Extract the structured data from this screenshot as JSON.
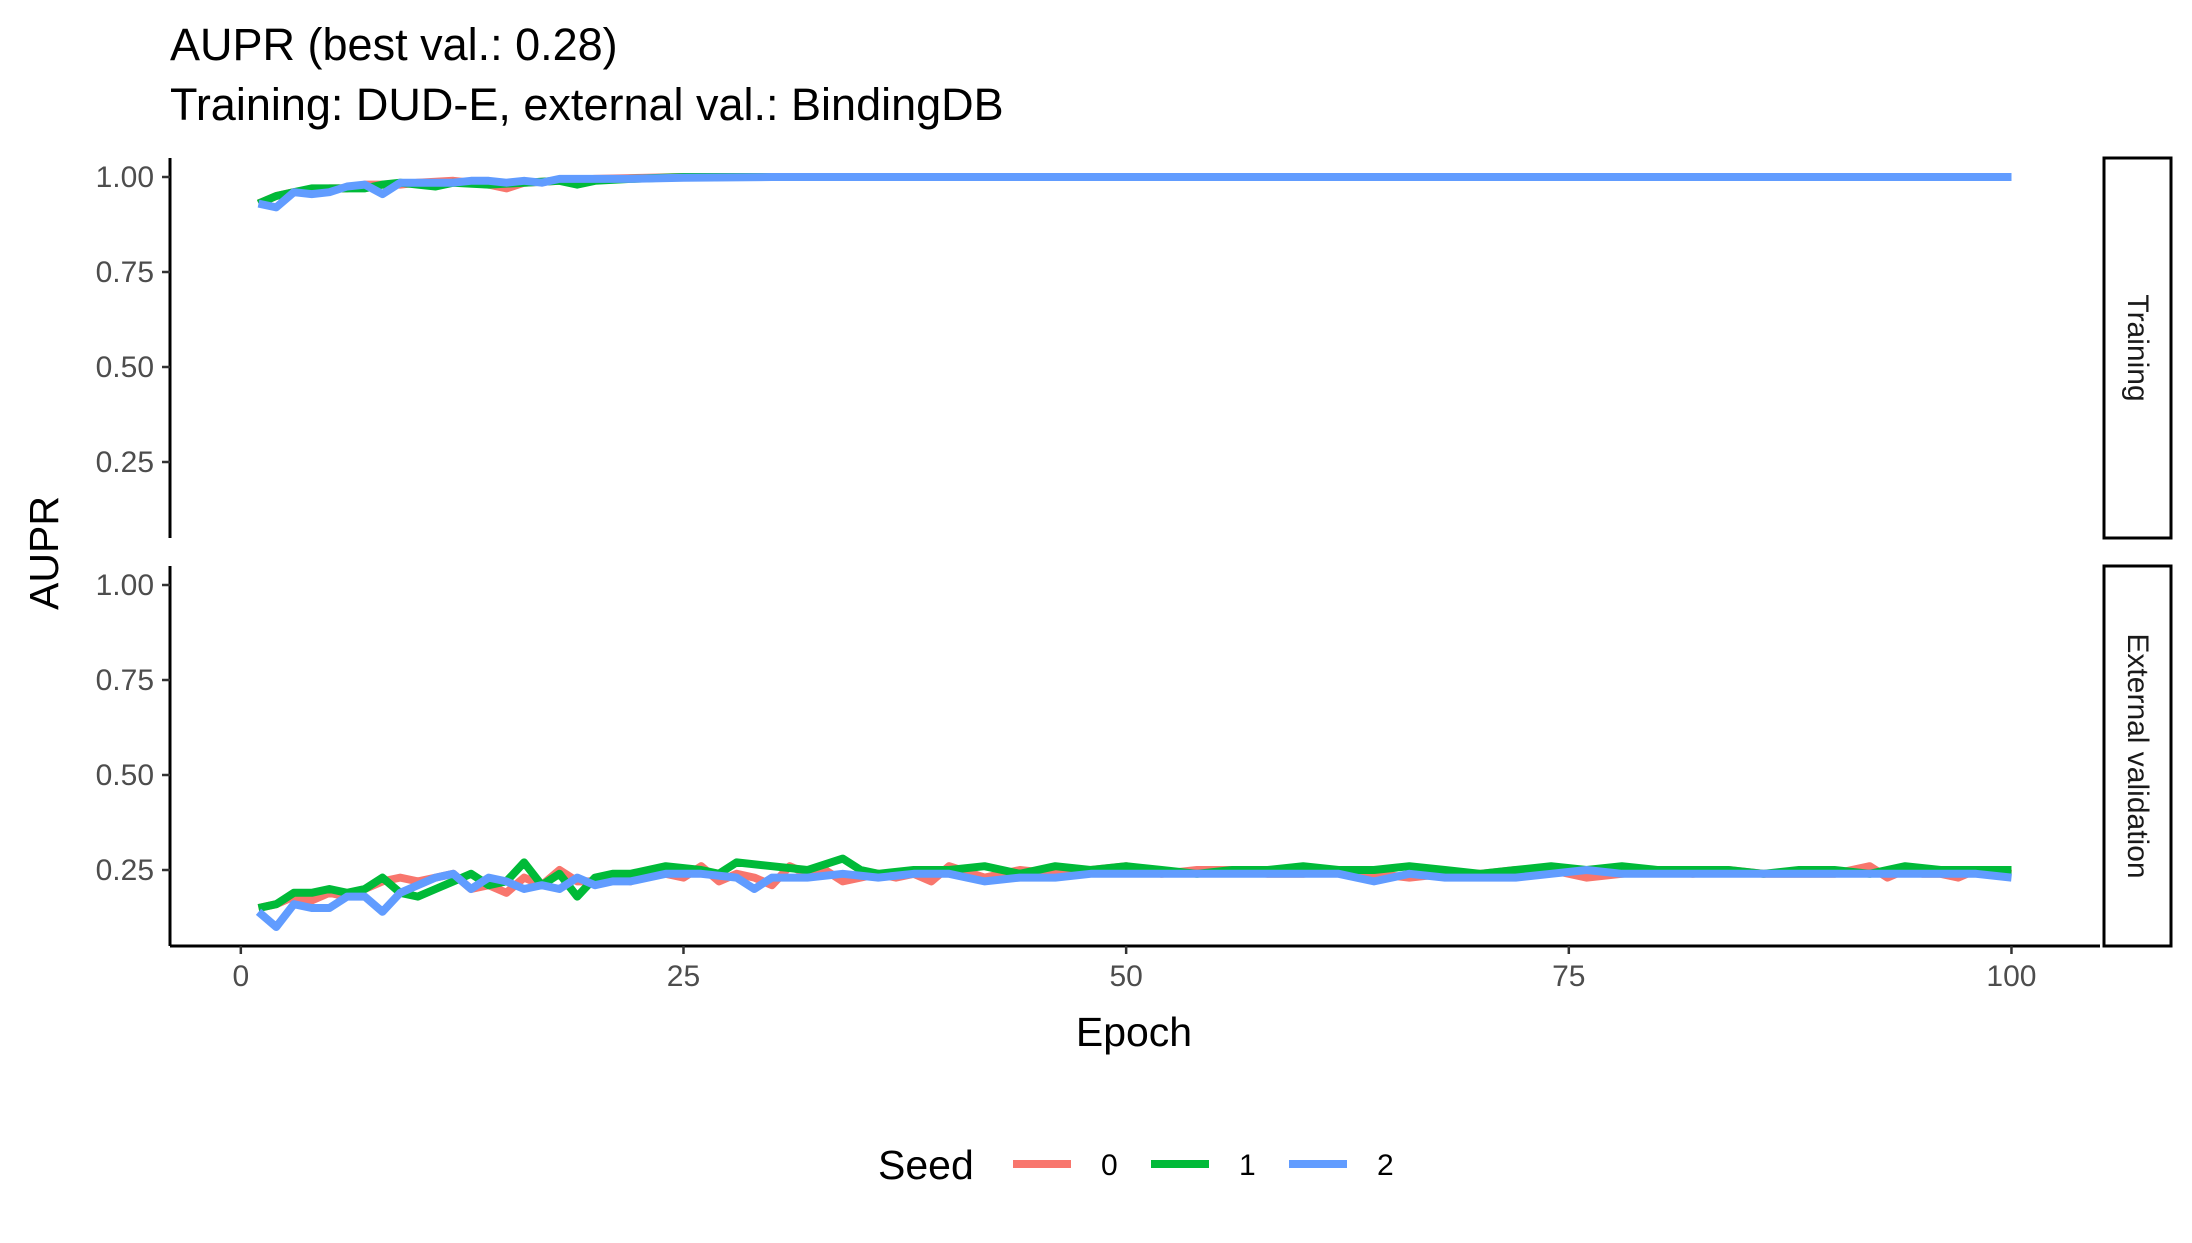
{
  "chart_data": {
    "type": "line",
    "title": "AUPR (best val.: 0.28)",
    "subtitle": "Training: DUD-E, external val.: BindingDB",
    "xlabel": "Epoch",
    "ylabel": "AUPR",
    "xlim": [
      -4,
      105
    ],
    "ylim": [
      0.05,
      1.05
    ],
    "x_ticks": [
      0,
      25,
      50,
      75,
      100
    ],
    "x_tick_labels": [
      "0",
      "25",
      "50",
      "75",
      "100"
    ],
    "y_ticks": [
      0.25,
      0.5,
      0.75,
      1.0
    ],
    "y_tick_labels": [
      "0.25",
      "0.50",
      "0.75",
      "1.00"
    ],
    "grid": false,
    "legend": {
      "title": "Seed",
      "position": "bottom"
    },
    "series_colors": {
      "0": "#F8766D",
      "1": "#00BA38",
      "2": "#619CFF"
    },
    "panels": [
      {
        "name": "Training",
        "series": [
          {
            "name": "0",
            "x": [
              1,
              2,
              3,
              4,
              5,
              6,
              7,
              8,
              9,
              10,
              12,
              14,
              15,
              16,
              18,
              20,
              25,
              30,
              40,
              50,
              60,
              70,
              80,
              90,
              100
            ],
            "y": [
              0.93,
              0.95,
              0.96,
              0.96,
              0.97,
              0.97,
              0.98,
              0.98,
              0.98,
              0.985,
              0.99,
              0.98,
              0.97,
              0.985,
              0.99,
              0.995,
              1.0,
              1.0,
              1.0,
              1.0,
              1.0,
              1.0,
              1.0,
              1.0,
              1.0
            ]
          },
          {
            "name": "1",
            "x": [
              1,
              2,
              3,
              4,
              5,
              6,
              7,
              8,
              9,
              10,
              11,
              12,
              14,
              16,
              18,
              19,
              20,
              22,
              25,
              30,
              40,
              50,
              60,
              70,
              80,
              90,
              100
            ],
            "y": [
              0.93,
              0.95,
              0.96,
              0.97,
              0.97,
              0.97,
              0.97,
              0.98,
              0.985,
              0.98,
              0.975,
              0.985,
              0.98,
              0.985,
              0.99,
              0.98,
              0.99,
              0.995,
              1.0,
              1.0,
              1.0,
              1.0,
              1.0,
              1.0,
              1.0,
              1.0,
              1.0
            ]
          },
          {
            "name": "2",
            "x": [
              1,
              2,
              3,
              4,
              5,
              6,
              7,
              8,
              9,
              10,
              11,
              12,
              13,
              14,
              15,
              16,
              17,
              18,
              20,
              22,
              25,
              30,
              40,
              50,
              60,
              70,
              80,
              90,
              100
            ],
            "y": [
              0.93,
              0.92,
              0.96,
              0.955,
              0.96,
              0.975,
              0.98,
              0.955,
              0.985,
              0.985,
              0.985,
              0.985,
              0.99,
              0.99,
              0.985,
              0.99,
              0.985,
              0.995,
              0.995,
              0.995,
              0.998,
              1.0,
              1.0,
              1.0,
              1.0,
              1.0,
              1.0,
              1.0,
              1.0
            ]
          }
        ]
      },
      {
        "name": "External validation",
        "series": [
          {
            "name": "0",
            "x": [
              1,
              2,
              3,
              4,
              5,
              6,
              7,
              8,
              9,
              10,
              11,
              12,
              13,
              14,
              15,
              16,
              17,
              18,
              19,
              20,
              21,
              22,
              23,
              24,
              25,
              26,
              27,
              28,
              29,
              30,
              31,
              32,
              33,
              34,
              35,
              36,
              37,
              38,
              39,
              40,
              42,
              44,
              46,
              48,
              50,
              52,
              54,
              56,
              58,
              60,
              62,
              64,
              66,
              68,
              70,
              72,
              74,
              76,
              78,
              80,
              82,
              84,
              86,
              88,
              90,
              92,
              93,
              94,
              95,
              96,
              97,
              98,
              100
            ],
            "y": [
              0.15,
              0.16,
              0.18,
              0.17,
              0.19,
              0.18,
              0.2,
              0.22,
              0.23,
              0.22,
              0.23,
              0.24,
              0.2,
              0.21,
              0.19,
              0.23,
              0.21,
              0.25,
              0.22,
              0.22,
              0.23,
              0.22,
              0.24,
              0.24,
              0.23,
              0.26,
              0.22,
              0.24,
              0.23,
              0.21,
              0.26,
              0.24,
              0.25,
              0.22,
              0.23,
              0.24,
              0.23,
              0.24,
              0.22,
              0.26,
              0.23,
              0.25,
              0.24,
              0.25,
              0.26,
              0.24,
              0.25,
              0.25,
              0.24,
              0.24,
              0.25,
              0.24,
              0.23,
              0.24,
              0.24,
              0.25,
              0.25,
              0.23,
              0.24,
              0.25,
              0.24,
              0.25,
              0.24,
              0.24,
              0.24,
              0.26,
              0.23,
              0.25,
              0.24,
              0.24,
              0.23,
              0.25,
              0.24
            ]
          },
          {
            "name": "1",
            "x": [
              1,
              2,
              3,
              4,
              5,
              6,
              7,
              8,
              9,
              10,
              11,
              12,
              13,
              14,
              15,
              16,
              17,
              18,
              19,
              20,
              21,
              22,
              24,
              26,
              27,
              28,
              30,
              32,
              34,
              35,
              36,
              38,
              40,
              42,
              44,
              46,
              48,
              50,
              52,
              54,
              56,
              58,
              60,
              62,
              64,
              66,
              68,
              70,
              72,
              74,
              76,
              78,
              80,
              82,
              84,
              86,
              88,
              90,
              92,
              94,
              96,
              98,
              100
            ],
            "y": [
              0.15,
              0.16,
              0.19,
              0.19,
              0.2,
              0.19,
              0.2,
              0.23,
              0.19,
              0.18,
              0.2,
              0.22,
              0.24,
              0.21,
              0.22,
              0.27,
              0.21,
              0.24,
              0.18,
              0.23,
              0.24,
              0.24,
              0.26,
              0.25,
              0.24,
              0.27,
              0.26,
              0.25,
              0.28,
              0.25,
              0.24,
              0.25,
              0.25,
              0.26,
              0.24,
              0.26,
              0.25,
              0.26,
              0.25,
              0.24,
              0.25,
              0.25,
              0.26,
              0.25,
              0.25,
              0.26,
              0.25,
              0.24,
              0.25,
              0.26,
              0.25,
              0.26,
              0.25,
              0.25,
              0.25,
              0.24,
              0.25,
              0.25,
              0.24,
              0.26,
              0.25,
              0.25,
              0.25
            ]
          },
          {
            "name": "2",
            "x": [
              1,
              2,
              3,
              4,
              5,
              6,
              7,
              8,
              9,
              10,
              11,
              12,
              13,
              14,
              15,
              16,
              17,
              18,
              19,
              20,
              21,
              22,
              24,
              26,
              28,
              29,
              30,
              32,
              34,
              36,
              38,
              40,
              42,
              44,
              46,
              48,
              50,
              52,
              54,
              56,
              58,
              60,
              62,
              64,
              66,
              68,
              70,
              72,
              74,
              76,
              78,
              80,
              82,
              84,
              86,
              88,
              90,
              92,
              94,
              96,
              98,
              100
            ],
            "y": [
              0.14,
              0.1,
              0.16,
              0.15,
              0.15,
              0.18,
              0.18,
              0.14,
              0.19,
              0.21,
              0.23,
              0.24,
              0.2,
              0.23,
              0.22,
              0.2,
              0.21,
              0.2,
              0.23,
              0.21,
              0.22,
              0.22,
              0.24,
              0.24,
              0.23,
              0.2,
              0.23,
              0.23,
              0.24,
              0.23,
              0.24,
              0.24,
              0.22,
              0.23,
              0.23,
              0.24,
              0.24,
              0.24,
              0.24,
              0.24,
              0.24,
              0.24,
              0.24,
              0.22,
              0.24,
              0.23,
              0.23,
              0.23,
              0.24,
              0.25,
              0.24,
              0.24,
              0.24,
              0.24,
              0.24,
              0.24,
              0.24,
              0.24,
              0.24,
              0.24,
              0.24,
              0.23
            ]
          }
        ]
      }
    ]
  }
}
